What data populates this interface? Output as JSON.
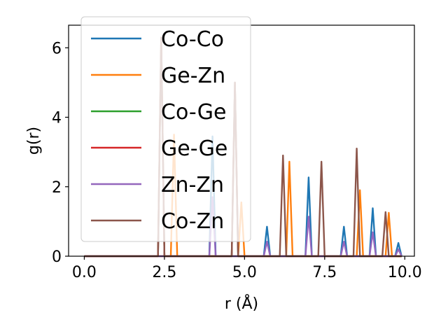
{
  "chart_data": {
    "type": "line",
    "title": "",
    "xlabel": "r (Å)",
    "ylabel": "g(r)",
    "xlim": [
      -0.49,
      10.3
    ],
    "ylim": [
      0,
      6.65
    ],
    "xticks": [
      0.0,
      2.5,
      5.0,
      7.5,
      10.0
    ],
    "xtick_labels": [
      "0.0",
      "2.5",
      "5.0",
      "7.5",
      "10.0"
    ],
    "yticks": [
      0,
      2,
      4,
      6
    ],
    "ytick_labels": [
      "0",
      "2",
      "4",
      "6"
    ],
    "grid": false,
    "legend_position": "top-left",
    "series": [
      {
        "name": "Co-Co",
        "color": "#1f77b4",
        "peaks": [
          [
            4.0,
            3.45
          ],
          [
            5.7,
            0.85
          ],
          [
            7.0,
            2.27
          ],
          [
            8.1,
            0.85
          ],
          [
            9.0,
            1.38
          ],
          [
            9.8,
            0.38
          ]
        ]
      },
      {
        "name": "Ge-Zn",
        "color": "#ff7f0e",
        "peaks": [
          [
            2.8,
            3.5
          ],
          [
            4.9,
            1.55
          ],
          [
            6.4,
            2.72
          ],
          [
            8.6,
            1.9
          ],
          [
            9.5,
            1.25
          ]
        ]
      },
      {
        "name": "Co-Ge",
        "color": "#2ca02c",
        "peaks": [
          [
            2.4,
            6.3
          ],
          [
            4.7,
            5.0
          ]
        ]
      },
      {
        "name": "Ge-Ge",
        "color": "#d62728",
        "peaks": [
          [
            2.4,
            6.3
          ],
          [
            4.7,
            5.0
          ]
        ]
      },
      {
        "name": "Zn-Zn",
        "color": "#9467bd",
        "peaks": [
          [
            4.0,
            1.7
          ],
          [
            5.7,
            0.42
          ],
          [
            7.0,
            1.14
          ],
          [
            8.1,
            0.42
          ],
          [
            9.0,
            0.69
          ],
          [
            9.8,
            0.2
          ]
        ]
      },
      {
        "name": "Co-Zn",
        "color": "#8c564b",
        "peaks": [
          [
            2.4,
            6.3
          ],
          [
            4.7,
            5.0
          ],
          [
            6.2,
            2.9
          ],
          [
            7.4,
            2.72
          ],
          [
            8.5,
            3.1
          ],
          [
            9.4,
            1.27
          ]
        ]
      }
    ]
  }
}
